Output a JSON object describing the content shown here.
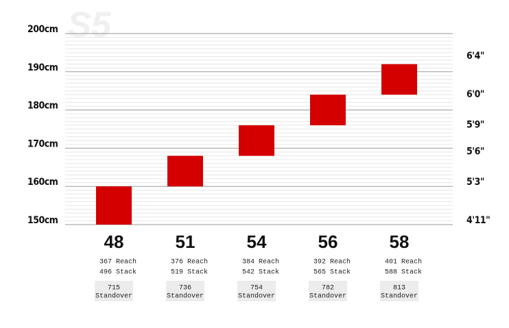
{
  "chart_data": {
    "type": "floating-bar",
    "watermark": "S5",
    "categories": [
      "48",
      "51",
      "54",
      "56",
      "58"
    ],
    "values": [
      [
        150,
        160
      ],
      [
        160,
        168
      ],
      [
        168,
        176
      ],
      [
        176,
        184
      ],
      [
        184,
        192
      ]
    ],
    "color": "#d40000",
    "ylim": [
      150,
      200
    ],
    "yticks": [
      {
        "value": 150,
        "label": "150cm"
      },
      {
        "value": 160,
        "label": "160cm"
      },
      {
        "value": 170,
        "label": "170cm"
      },
      {
        "value": 180,
        "label": "180cm"
      },
      {
        "value": 190,
        "label": "190cm"
      },
      {
        "value": 200,
        "label": "200cm"
      }
    ],
    "minor_yticks": [
      151,
      152,
      153,
      154,
      155,
      156,
      157,
      158,
      159,
      161,
      162,
      163,
      164,
      165,
      166,
      167,
      168,
      169,
      171,
      172,
      173,
      174,
      175,
      176,
      177,
      178,
      179,
      181,
      182,
      183,
      184,
      185,
      186,
      187,
      188,
      189,
      191,
      192,
      193,
      194,
      195,
      196,
      197,
      198,
      199
    ],
    "y2lim": [
      150,
      200
    ],
    "y2ticks": [
      {
        "value": 150,
        "label": "4'11\""
      },
      {
        "value": 160,
        "label": "5'3\""
      },
      {
        "value": 168,
        "label": "5'6\""
      },
      {
        "value": 175,
        "label": "5'9\""
      },
      {
        "value": 183,
        "label": "6'0\""
      },
      {
        "value": 193,
        "label": "6'4\""
      }
    ],
    "grid": true,
    "reach_label": "Reach",
    "reach": [
      367,
      376,
      384,
      392,
      401
    ],
    "stack_label": "Stack",
    "stack": [
      496,
      519,
      542,
      565,
      588
    ],
    "standover_label": "Standover",
    "standover": [
      715,
      736,
      754,
      782,
      813
    ]
  }
}
